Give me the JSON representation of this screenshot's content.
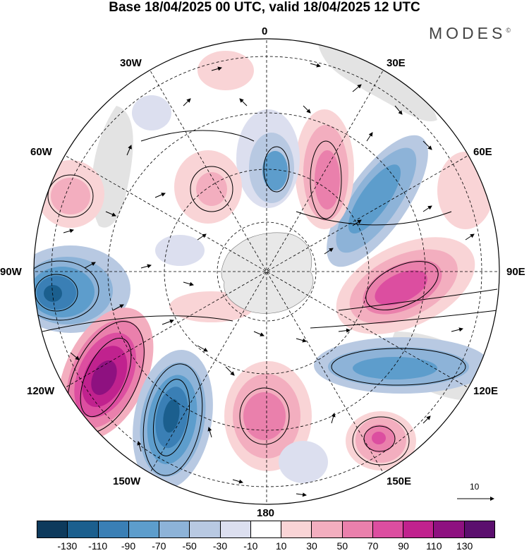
{
  "title": "Base 18/04/2025 00 UTC, valid 18/04/2025 12 UTC",
  "brand": "MODES",
  "brand_mark": "©",
  "longitude_labels": {
    "lon_0": "0",
    "lon_30e": "30E",
    "lon_60e": "60E",
    "lon_90e": "90E",
    "lon_120e": "120E",
    "lon_150e": "150E",
    "lon_180": "180",
    "lon_150w": "150W",
    "lon_120w": "120W",
    "lon_90w": "90W",
    "lon_60w": "60W",
    "lon_30w": "30W"
  },
  "reference_vector_label": "10",
  "colorbar": {
    "ticks": [
      "-130",
      "-110",
      "-90",
      "-70",
      "-50",
      "-30",
      "-10",
      "10",
      "30",
      "50",
      "70",
      "90",
      "110",
      "130"
    ],
    "colors": [
      "#0d3a5c",
      "#1b5f8e",
      "#3a7fb5",
      "#5d9dcc",
      "#8db3d8",
      "#b8c9e2",
      "#dcdfef",
      "#ffffff",
      "#f9d4d6",
      "#f3aebf",
      "#ea80ac",
      "#dc4ea0",
      "#c0228e",
      "#8e1180",
      "#5b0f6e"
    ]
  },
  "map": {
    "projection": "south-polar-stereographic",
    "landmass": "Antarctica",
    "anomaly_centers": [
      {
        "sign": "negative",
        "level": "-110",
        "region": "90W"
      },
      {
        "sign": "positive",
        "level": "110",
        "region": "120W"
      },
      {
        "sign": "negative",
        "level": "-110",
        "region": "150W"
      },
      {
        "sign": "positive",
        "level": "70",
        "region": "180"
      },
      {
        "sign": "positive",
        "level": "70",
        "region": "150E"
      },
      {
        "sign": "negative",
        "level": "-70",
        "region": "120E"
      },
      {
        "sign": "positive",
        "level": "70",
        "region": "90E"
      },
      {
        "sign": "negative",
        "level": "-70",
        "region": "45E"
      },
      {
        "sign": "positive",
        "level": "50",
        "region": "20E"
      },
      {
        "sign": "negative",
        "level": "-70",
        "region": "0"
      },
      {
        "sign": "positive",
        "level": "30",
        "region": "30W"
      },
      {
        "sign": "positive",
        "level": "30",
        "region": "60W"
      }
    ]
  }
}
